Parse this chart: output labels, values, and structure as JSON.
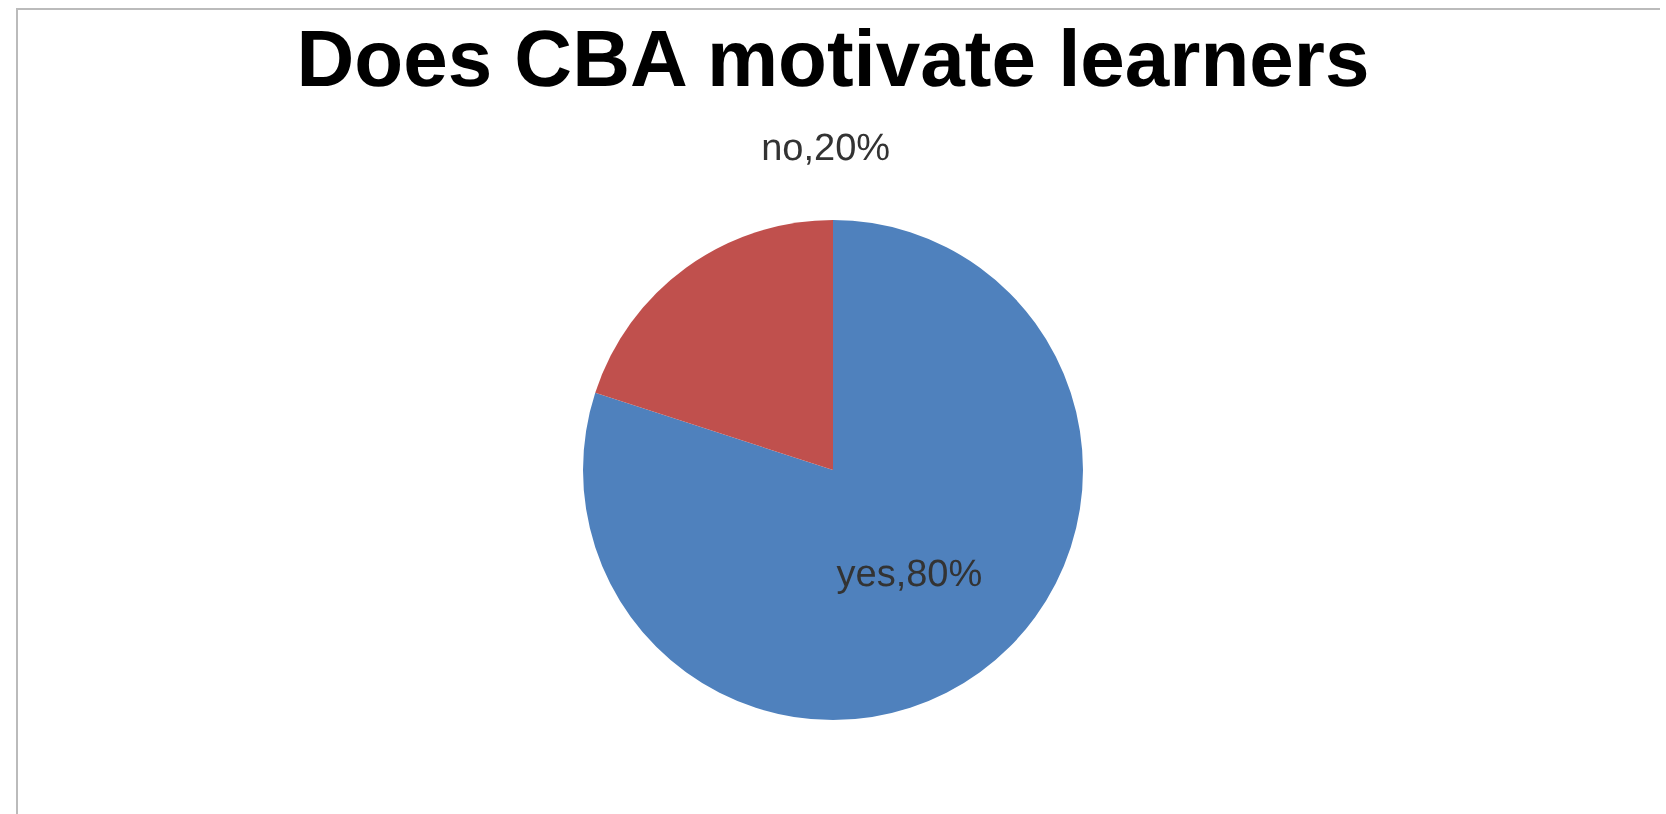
{
  "chart_data": {
    "type": "pie",
    "title": "Does CBA motivate learners",
    "categories": [
      "yes",
      "no"
    ],
    "values": [
      80,
      20
    ],
    "colors": [
      "#4f81bd",
      "#c0504d"
    ],
    "value_labels": [
      "80%",
      "20%"
    ],
    "legend": false
  }
}
